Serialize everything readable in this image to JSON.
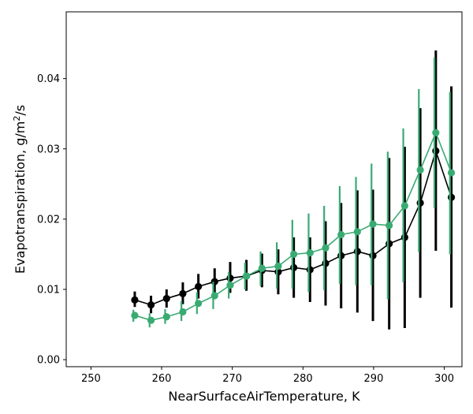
{
  "chart_data": {
    "type": "line",
    "xlabel": "NearSurfaceAirTemperature,  K",
    "ylabel_main": "Evapotranspiration,  g/m",
    "ylabel_sup": "2",
    "ylabel_tail": "/s",
    "xlim": [
      246.5,
      302.5
    ],
    "ylim": [
      -0.001,
      0.0495
    ],
    "xticks": [
      250,
      260,
      270,
      280,
      290,
      300
    ],
    "xtick_labels": [
      "250",
      "260",
      "270",
      "280",
      "290",
      "300"
    ],
    "yticks": [
      0.0,
      0.01,
      0.02,
      0.03,
      0.04
    ],
    "ytick_labels": [
      "0.00",
      "0.01",
      "0.02",
      "0.03",
      "0.04"
    ],
    "grid": false,
    "x": [
      256.2,
      258.5,
      260.7,
      263.0,
      265.2,
      267.5,
      269.7,
      272.0,
      274.2,
      276.5,
      278.7,
      281.0,
      283.2,
      285.4,
      287.7,
      289.9,
      292.2,
      294.4,
      296.6,
      298.8,
      301.0
    ],
    "series": [
      {
        "color": "#000000",
        "y": [
          0.0085,
          0.0078,
          0.0087,
          0.0094,
          0.0104,
          0.0111,
          0.0116,
          0.0119,
          0.0127,
          0.0125,
          0.0131,
          0.0128,
          0.0137,
          0.0148,
          0.0154,
          0.0148,
          0.0165,
          0.0174,
          0.0223,
          0.0297,
          0.0231
        ],
        "err_low": [
          0.0075,
          0.0066,
          0.0074,
          0.0079,
          0.0087,
          0.0092,
          0.0095,
          0.0098,
          0.0103,
          0.0093,
          0.0088,
          0.0082,
          0.0077,
          0.0073,
          0.0067,
          0.0055,
          0.0043,
          0.0045,
          0.0088,
          0.0155,
          0.0074
        ],
        "err_high": [
          0.0097,
          0.0091,
          0.01,
          0.011,
          0.0122,
          0.013,
          0.0139,
          0.0142,
          0.0151,
          0.0157,
          0.0174,
          0.0174,
          0.0197,
          0.0223,
          0.0241,
          0.0242,
          0.0287,
          0.0303,
          0.0358,
          0.044,
          0.0389
        ]
      },
      {
        "color": "#3aaa73",
        "y": [
          0.0063,
          0.0056,
          0.0061,
          0.0068,
          0.008,
          0.0091,
          0.0106,
          0.0119,
          0.013,
          0.0133,
          0.015,
          0.0152,
          0.0159,
          0.0178,
          0.0182,
          0.0193,
          0.0191,
          0.0219,
          0.027,
          0.0323,
          0.0266
        ],
        "err_low": [
          0.0054,
          0.0046,
          0.0051,
          0.0055,
          0.0065,
          0.0072,
          0.0087,
          0.01,
          0.0105,
          0.0101,
          0.0101,
          0.0096,
          0.0099,
          0.0108,
          0.0106,
          0.0106,
          0.0086,
          0.011,
          0.0153,
          0.0216,
          0.015
        ],
        "err_high": [
          0.0071,
          0.0066,
          0.0072,
          0.0083,
          0.0096,
          0.0111,
          0.0125,
          0.0138,
          0.0154,
          0.0167,
          0.0199,
          0.0208,
          0.0219,
          0.0247,
          0.026,
          0.0279,
          0.0296,
          0.0329,
          0.0385,
          0.043,
          0.0381
        ]
      }
    ]
  }
}
